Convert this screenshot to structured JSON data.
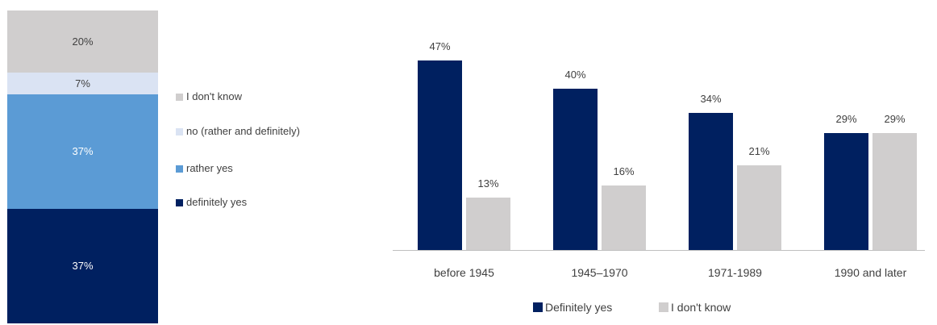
{
  "chart_data": [
    {
      "type": "bar",
      "stacked": true,
      "series": [
        {
          "name": "definitely yes",
          "value": 37,
          "label": "37%",
          "color": "#002060"
        },
        {
          "name": "rather yes",
          "value": 37,
          "label": "37%",
          "color": "#5b9bd5"
        },
        {
          "name": "no (rather and definitely)",
          "value": 7,
          "label": "7%",
          "color": "#dae3f3"
        },
        {
          "name": "I don't know",
          "value": 20,
          "label": "20%",
          "color": "#d0cece"
        }
      ],
      "legend": {
        "position": "right",
        "items": [
          "I don't know",
          "no (rather and definitely)",
          "rather yes",
          "definitely yes"
        ]
      }
    },
    {
      "type": "bar",
      "categories": [
        "before 1945",
        "1945–1970",
        "1971-1989",
        "1990 and later"
      ],
      "series": [
        {
          "name": "Definitely yes",
          "values": [
            47,
            40,
            34,
            29
          ],
          "labels": [
            "47%",
            "40%",
            "34%",
            "29%"
          ],
          "color": "#002060"
        },
        {
          "name": "I don't know",
          "values": [
            13,
            16,
            21,
            29
          ],
          "labels": [
            "13%",
            "16%",
            "21%",
            "29%"
          ],
          "color": "#d0cece"
        }
      ],
      "ylim": [
        0,
        50
      ],
      "legend": {
        "position": "bottom"
      }
    }
  ]
}
